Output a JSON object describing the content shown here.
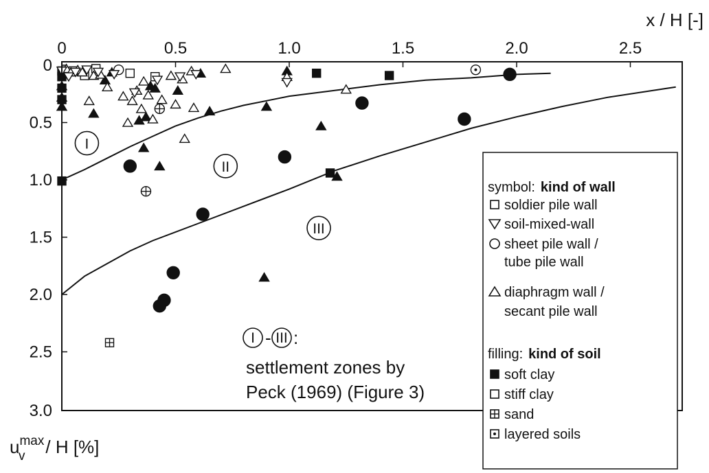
{
  "chart_data": {
    "type": "scatter",
    "x_axis": {
      "label": "x / H [-]",
      "position": "top",
      "range": [
        0,
        2.7
      ],
      "ticks": [
        "0",
        "0.5",
        "1.0",
        "1.5",
        "2.0",
        "2.5"
      ],
      "tick_values": [
        0,
        0.5,
        1.0,
        1.5,
        2.0,
        2.5
      ]
    },
    "y_axis": {
      "label_main": "u",
      "label_sup": "max",
      "label_sub": "v",
      "label_rest": "/ H [%]",
      "inverted": true,
      "range": [
        0,
        3.0
      ],
      "ticks": [
        "0",
        "0.5",
        "1.0",
        "1.5",
        "2.0",
        "2.5",
        "3.0"
      ],
      "tick_values": [
        0,
        0.5,
        1.0,
        1.5,
        2.0,
        2.5,
        3.0
      ]
    },
    "grid": false,
    "zone_boundaries": [
      {
        "x": [
          0,
          0.1,
          0.2,
          0.3,
          0.4,
          0.5,
          0.6,
          0.7,
          0.8,
          0.9,
          1.0,
          1.2,
          1.4,
          1.6,
          1.8,
          2.0,
          2.15
        ],
        "y": [
          1.0,
          0.91,
          0.81,
          0.71,
          0.62,
          0.53,
          0.46,
          0.4,
          0.35,
          0.31,
          0.27,
          0.22,
          0.17,
          0.13,
          0.11,
          0.08,
          0.07
        ]
      },
      {
        "x": [
          0,
          0.1,
          0.2,
          0.3,
          0.4,
          0.6,
          0.8,
          1.0,
          1.2,
          1.4,
          1.6,
          1.8,
          2.0,
          2.2,
          2.4,
          2.6,
          2.7
        ],
        "y": [
          2.0,
          1.84,
          1.73,
          1.62,
          1.53,
          1.38,
          1.23,
          1.08,
          0.92,
          0.79,
          0.67,
          0.55,
          0.45,
          0.36,
          0.28,
          0.22,
          0.19
        ]
      }
    ],
    "zones": [
      {
        "label": "I",
        "x": 0.11,
        "y": 0.68
      },
      {
        "label": "II",
        "x": 0.72,
        "y": 0.88
      },
      {
        "label": "III",
        "x": 1.13,
        "y": 1.42
      }
    ],
    "points": [
      {
        "s": "sq",
        "f": "filled",
        "x": 0.0,
        "y": 0.05
      },
      {
        "s": "sq",
        "f": "filled",
        "x": 0.0,
        "y": 0.1
      },
      {
        "s": "sq",
        "f": "filled",
        "x": 0.0,
        "y": 0.2
      },
      {
        "s": "sq",
        "f": "filled",
        "x": 0.0,
        "y": 0.3
      },
      {
        "s": "sq",
        "f": "filled",
        "x": 0.0,
        "y": 1.01
      },
      {
        "s": "sq",
        "f": "filled",
        "x": 1.12,
        "y": 0.07
      },
      {
        "s": "sq",
        "f": "filled",
        "x": 1.44,
        "y": 0.09
      },
      {
        "s": "sq",
        "f": "filled",
        "x": 1.18,
        "y": 0.94
      },
      {
        "s": "sq",
        "f": "open",
        "x": 0.05,
        "y": 0.05
      },
      {
        "s": "sq",
        "f": "open",
        "x": 0.1,
        "y": 0.09
      },
      {
        "s": "sq",
        "f": "open",
        "x": 0.15,
        "y": 0.03
      },
      {
        "s": "sq",
        "f": "open",
        "x": 0.3,
        "y": 0.07
      },
      {
        "s": "sq",
        "f": "open",
        "x": 0.41,
        "y": 0.1
      },
      {
        "s": "sq",
        "f": "sand",
        "x": 0.21,
        "y": 2.42
      },
      {
        "s": "ci",
        "f": "filled",
        "x": 0.3,
        "y": 0.88
      },
      {
        "s": "ci",
        "f": "filled",
        "x": 0.45,
        "y": 2.05
      },
      {
        "s": "ci",
        "f": "filled",
        "x": 0.43,
        "y": 2.1
      },
      {
        "s": "ci",
        "f": "filled",
        "x": 0.49,
        "y": 1.81
      },
      {
        "s": "ci",
        "f": "filled",
        "x": 0.62,
        "y": 1.3
      },
      {
        "s": "ci",
        "f": "filled",
        "x": 0.98,
        "y": 0.8
      },
      {
        "s": "ci",
        "f": "filled",
        "x": 1.32,
        "y": 0.33
      },
      {
        "s": "ci",
        "f": "filled",
        "x": 1.77,
        "y": 0.47
      },
      {
        "s": "ci",
        "f": "filled",
        "x": 1.97,
        "y": 0.08
      },
      {
        "s": "ci",
        "f": "open",
        "x": 0.25,
        "y": 0.04
      },
      {
        "s": "ci",
        "f": "sand",
        "x": 0.37,
        "y": 1.1
      },
      {
        "s": "ci",
        "f": "sand",
        "x": 0.43,
        "y": 0.38
      },
      {
        "s": "ci",
        "f": "layered",
        "x": 1.82,
        "y": 0.04
      },
      {
        "s": "tu",
        "f": "filled",
        "x": 0.0,
        "y": 0.18
      },
      {
        "s": "tu",
        "f": "filled",
        "x": 0.0,
        "y": 0.28
      },
      {
        "s": "tu",
        "f": "filled",
        "x": 0.0,
        "y": 0.36
      },
      {
        "s": "tu",
        "f": "filled",
        "x": 0.14,
        "y": 0.42
      },
      {
        "s": "tu",
        "f": "filled",
        "x": 0.19,
        "y": 0.13
      },
      {
        "s": "tu",
        "f": "filled",
        "x": 0.22,
        "y": 0.06
      },
      {
        "s": "tu",
        "f": "filled",
        "x": 0.34,
        "y": 0.48
      },
      {
        "s": "tu",
        "f": "filled",
        "x": 0.36,
        "y": 0.72
      },
      {
        "s": "tu",
        "f": "filled",
        "x": 0.37,
        "y": 0.45
      },
      {
        "s": "tu",
        "f": "filled",
        "x": 0.39,
        "y": 0.18
      },
      {
        "s": "tu",
        "f": "filled",
        "x": 0.41,
        "y": 0.2
      },
      {
        "s": "tu",
        "f": "filled",
        "x": 0.43,
        "y": 0.88
      },
      {
        "s": "tu",
        "f": "filled",
        "x": 0.51,
        "y": 0.22
      },
      {
        "s": "tu",
        "f": "filled",
        "x": 0.61,
        "y": 0.07
      },
      {
        "s": "tu",
        "f": "filled",
        "x": 0.65,
        "y": 0.4
      },
      {
        "s": "tu",
        "f": "filled",
        "x": 0.9,
        "y": 0.36
      },
      {
        "s": "tu",
        "f": "filled",
        "x": 0.99,
        "y": 0.05
      },
      {
        "s": "tu",
        "f": "filled",
        "x": 1.14,
        "y": 0.53
      },
      {
        "s": "tu",
        "f": "filled",
        "x": 0.89,
        "y": 1.85
      },
      {
        "s": "tu",
        "f": "filled",
        "x": 1.21,
        "y": 0.97
      },
      {
        "s": "tu",
        "f": "open",
        "x": 0.02,
        "y": 0.03
      },
      {
        "s": "tu",
        "f": "open",
        "x": 0.04,
        "y": 0.06
      },
      {
        "s": "tu",
        "f": "open",
        "x": 0.07,
        "y": 0.04
      },
      {
        "s": "tu",
        "f": "open",
        "x": 0.09,
        "y": 0.06
      },
      {
        "s": "tu",
        "f": "open",
        "x": 0.12,
        "y": 0.31
      },
      {
        "s": "tu",
        "f": "open",
        "x": 0.14,
        "y": 0.09
      },
      {
        "s": "tu",
        "f": "open",
        "x": 0.17,
        "y": 0.08
      },
      {
        "s": "tu",
        "f": "open",
        "x": 0.2,
        "y": 0.19
      },
      {
        "s": "tu",
        "f": "open",
        "x": 0.27,
        "y": 0.27
      },
      {
        "s": "tu",
        "f": "open",
        "x": 0.29,
        "y": 0.5
      },
      {
        "s": "tu",
        "f": "open",
        "x": 0.31,
        "y": 0.31
      },
      {
        "s": "tu",
        "f": "open",
        "x": 0.33,
        "y": 0.22
      },
      {
        "s": "tu",
        "f": "open",
        "x": 0.35,
        "y": 0.38
      },
      {
        "s": "tu",
        "f": "open",
        "x": 0.36,
        "y": 0.14
      },
      {
        "s": "tu",
        "f": "open",
        "x": 0.38,
        "y": 0.26
      },
      {
        "s": "tu",
        "f": "open",
        "x": 0.4,
        "y": 0.47
      },
      {
        "s": "tu",
        "f": "open",
        "x": 0.44,
        "y": 0.3
      },
      {
        "s": "tu",
        "f": "open",
        "x": 0.48,
        "y": 0.09
      },
      {
        "s": "tu",
        "f": "open",
        "x": 0.5,
        "y": 0.34
      },
      {
        "s": "tu",
        "f": "open",
        "x": 0.53,
        "y": 0.12
      },
      {
        "s": "tu",
        "f": "open",
        "x": 0.54,
        "y": 0.64
      },
      {
        "s": "tu",
        "f": "open",
        "x": 0.57,
        "y": 0.05
      },
      {
        "s": "tu",
        "f": "open",
        "x": 0.58,
        "y": 0.37
      },
      {
        "s": "tu",
        "f": "open",
        "x": 0.72,
        "y": 0.03
      },
      {
        "s": "tu",
        "f": "open",
        "x": 0.99,
        "y": 0.1
      },
      {
        "s": "tu",
        "f": "open",
        "x": 1.25,
        "y": 0.21
      },
      {
        "s": "td",
        "f": "open",
        "x": 0.0,
        "y": 0.05
      },
      {
        "s": "td",
        "f": "open",
        "x": 0.03,
        "y": 0.1
      },
      {
        "s": "td",
        "f": "open",
        "x": 0.06,
        "y": 0.06
      },
      {
        "s": "td",
        "f": "open",
        "x": 0.11,
        "y": 0.04
      },
      {
        "s": "td",
        "f": "open",
        "x": 0.16,
        "y": 0.06
      },
      {
        "s": "td",
        "f": "open",
        "x": 0.23,
        "y": 0.08
      },
      {
        "s": "td",
        "f": "open",
        "x": 0.32,
        "y": 0.24
      },
      {
        "s": "td",
        "f": "open",
        "x": 0.42,
        "y": 0.13
      },
      {
        "s": "td",
        "f": "open",
        "x": 0.52,
        "y": 0.1
      },
      {
        "s": "td",
        "f": "open",
        "x": 0.59,
        "y": 0.08
      },
      {
        "s": "td",
        "f": "open",
        "x": 0.99,
        "y": 0.15
      }
    ],
    "legend": {
      "position": "bottom-right",
      "wall_title_prefix": "symbol:",
      "wall_title_bold": "kind of wall",
      "walls": [
        {
          "symbol": "square-icon",
          "lines": [
            "soldier pile wall"
          ]
        },
        {
          "symbol": "triangle-down-icon",
          "lines": [
            "soil-mixed-wall"
          ]
        },
        {
          "symbol": "circle-icon",
          "lines": [
            "sheet pile wall /",
            "tube pile wall"
          ]
        },
        {
          "symbol": "triangle-up-icon",
          "lines": [
            "diaphragm wall /",
            "secant pile wall"
          ]
        }
      ],
      "soil_title_prefix": "filling:",
      "soil_title_bold": "kind of soil",
      "soils": [
        {
          "symbol": "filled-square-icon",
          "label": "soft clay"
        },
        {
          "symbol": "open-square-icon",
          "label": "stiff clay"
        },
        {
          "symbol": "crossed-square-icon",
          "label": "sand"
        },
        {
          "symbol": "dotted-square-icon",
          "label": "layered soils"
        }
      ]
    },
    "annotation": {
      "zone_from": "I",
      "separator": "-",
      "zone_to": "III",
      "colon": ":",
      "lines": [
        "settlement zones by",
        "Peck (1969) (Figure 3)"
      ]
    }
  }
}
